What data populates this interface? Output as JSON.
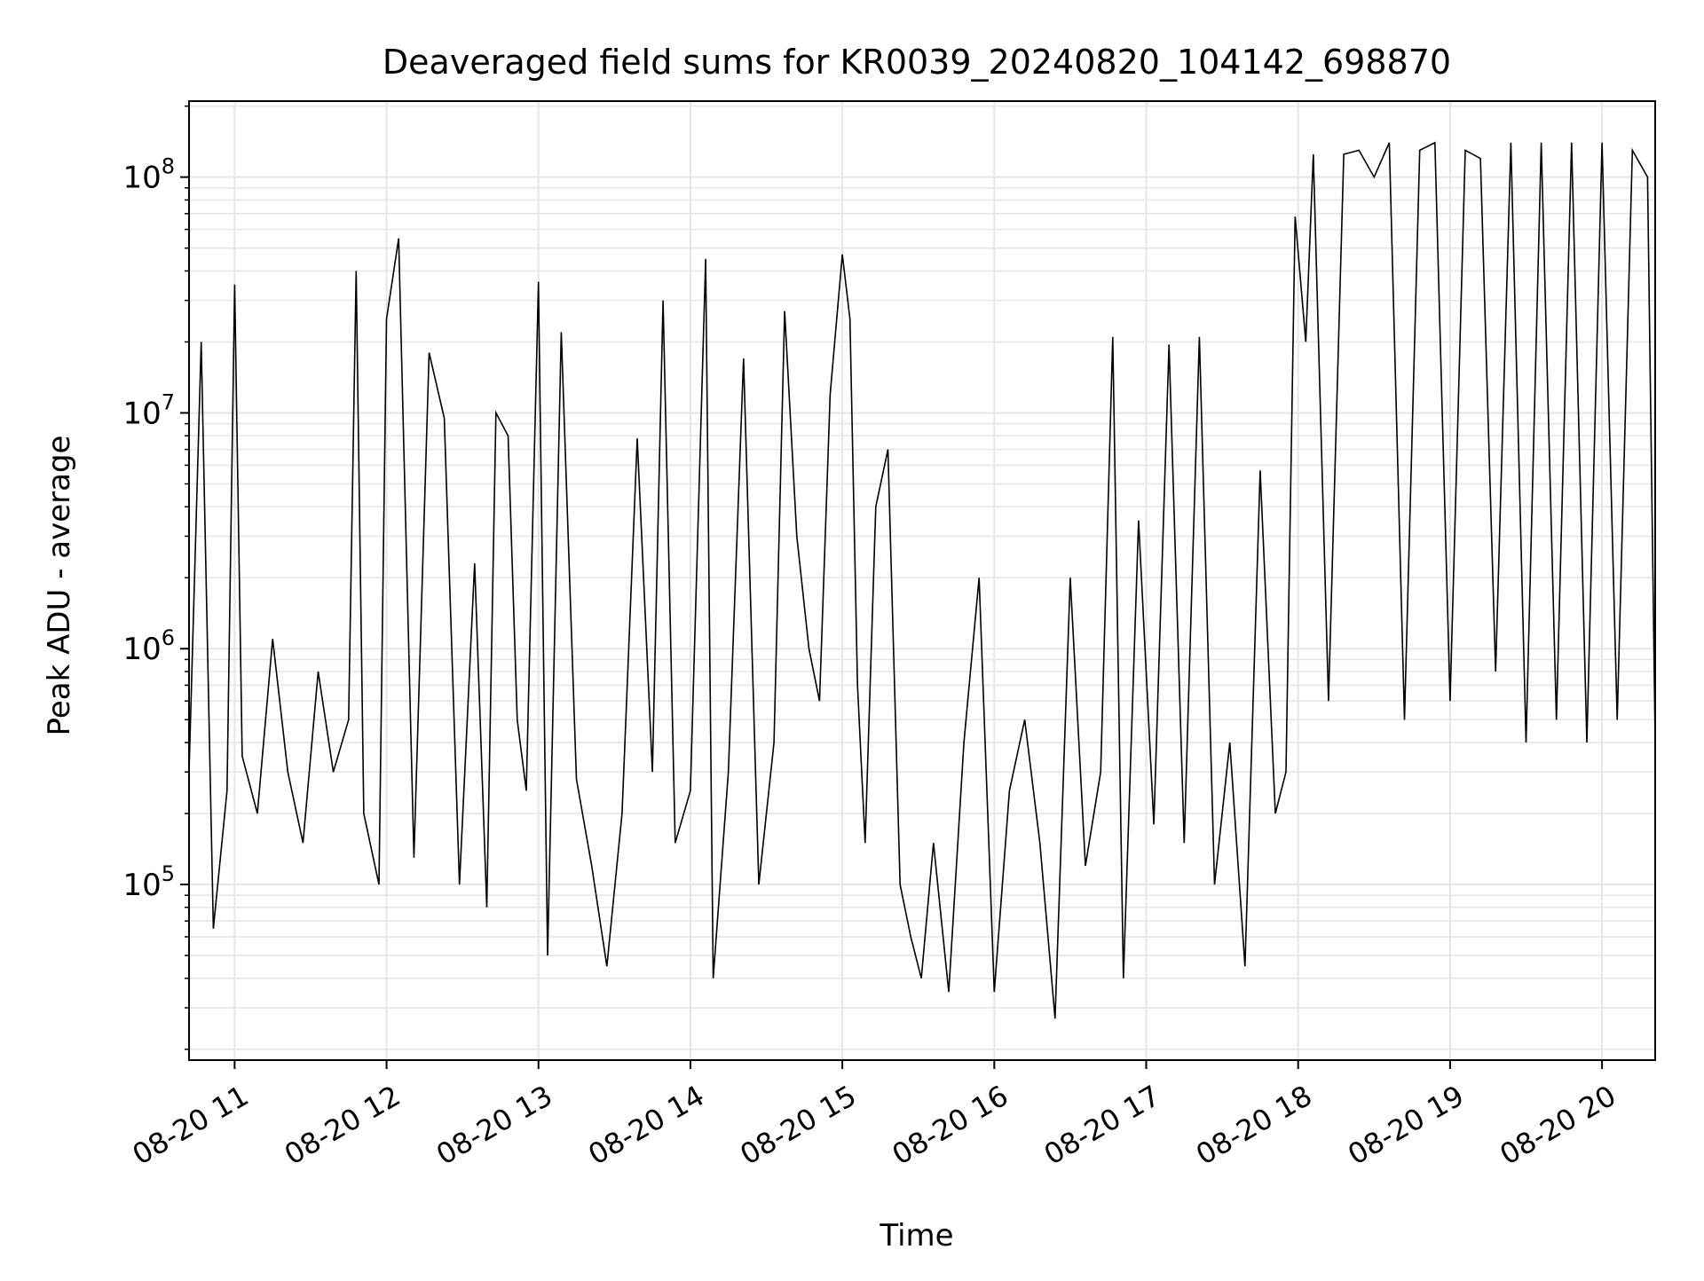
{
  "chart_data": {
    "type": "line",
    "title": "Deaveraged field sums for KR0039_20240820_104142_698870",
    "xlabel": "Time",
    "ylabel": "Peak ADU - average",
    "x_tick_labels": [
      "08-20 11",
      "08-20 12",
      "08-20 13",
      "08-20 14",
      "08-20 15",
      "08-20 16",
      "08-20 17",
      "08-20 18",
      "08-20 19",
      "08-20 20"
    ],
    "x_tick_hours": [
      11,
      12,
      13,
      14,
      15,
      16,
      17,
      18,
      19,
      20
    ],
    "xlim_hours": [
      10.7,
      20.35
    ],
    "y_scale": "log",
    "ylim": [
      18000,
      210000000
    ],
    "y_ticks": [
      {
        "value": 100000,
        "base": "10",
        "exp": "5"
      },
      {
        "value": 1000000,
        "base": "10",
        "exp": "6"
      },
      {
        "value": 10000000,
        "base": "10",
        "exp": "7"
      },
      {
        "value": 100000000,
        "base": "10",
        "exp": "8"
      }
    ],
    "grid": true,
    "line_color": "#000000",
    "grid_color": "#e6e6e6",
    "series": [
      {
        "x_hours": [
          10.7,
          10.78,
          10.86,
          10.95,
          11.0,
          11.05,
          11.15,
          11.25,
          11.35,
          11.45,
          11.55,
          11.65,
          11.75,
          11.8,
          11.85,
          11.95,
          12.0,
          12.08,
          12.18,
          12.28,
          12.38,
          12.48,
          12.58,
          12.66,
          12.72,
          12.8,
          12.86,
          12.92,
          13.0,
          13.06,
          13.15,
          13.25,
          13.35,
          13.45,
          13.55,
          13.65,
          13.75,
          13.82,
          13.9,
          14.0,
          14.1,
          14.15,
          14.25,
          14.35,
          14.45,
          14.55,
          14.62,
          14.7,
          14.78,
          14.85,
          14.92,
          15.0,
          15.05,
          15.1,
          15.15,
          15.22,
          15.3,
          15.38,
          15.45,
          15.52,
          15.6,
          15.7,
          15.8,
          15.9,
          16.0,
          16.1,
          16.2,
          16.3,
          16.4,
          16.5,
          16.6,
          16.7,
          16.78,
          16.85,
          16.95,
          17.05,
          17.15,
          17.25,
          17.35,
          17.45,
          17.55,
          17.65,
          17.75,
          17.85,
          17.92,
          17.98,
          18.05,
          18.1,
          18.2,
          18.3,
          18.4,
          18.5,
          18.6,
          18.7,
          18.8,
          18.9,
          19.0,
          19.1,
          19.2,
          19.3,
          19.4,
          19.5,
          19.6,
          19.7,
          19.8,
          19.9,
          20.0,
          20.1,
          20.2,
          20.3,
          20.35
        ],
        "values": [
          300000,
          20000000,
          65000,
          250000,
          35000000,
          350000,
          200000,
          1100000,
          300000,
          150000,
          800000,
          300000,
          500000,
          40000000,
          200000,
          100000,
          25000000,
          55000000,
          130000,
          18000000,
          9500000,
          100000,
          2300000,
          80000,
          10000000,
          8000000,
          500000,
          250000,
          36000000,
          50000,
          22000000,
          280000,
          120000,
          45000,
          200000,
          7800000,
          300000,
          30000000,
          150000,
          250000,
          45000000,
          40000,
          300000,
          17000000,
          100000,
          400000,
          27000000,
          3000000,
          1000000,
          600000,
          12000000,
          47000000,
          25000000,
          700000,
          150000,
          4000000,
          7000000,
          100000,
          60000,
          40000,
          150000,
          35000,
          400000,
          2000000,
          35000,
          250000,
          500000,
          150000,
          27000,
          2000000,
          120000,
          300000,
          21000000,
          40000,
          3500000,
          180000,
          19500000,
          150000,
          21000000,
          100000,
          400000,
          45000,
          5700000,
          200000,
          300000,
          68000000,
          20000000,
          125000000,
          600000,
          125000000,
          130000000,
          100000000,
          140000000,
          500000,
          130000000,
          140000000,
          600000,
          130000000,
          120000000,
          800000,
          140000000,
          400000,
          140000000,
          500000,
          140000000,
          400000,
          140000000,
          500000,
          130000000,
          100000000,
          400000
        ]
      }
    ]
  }
}
